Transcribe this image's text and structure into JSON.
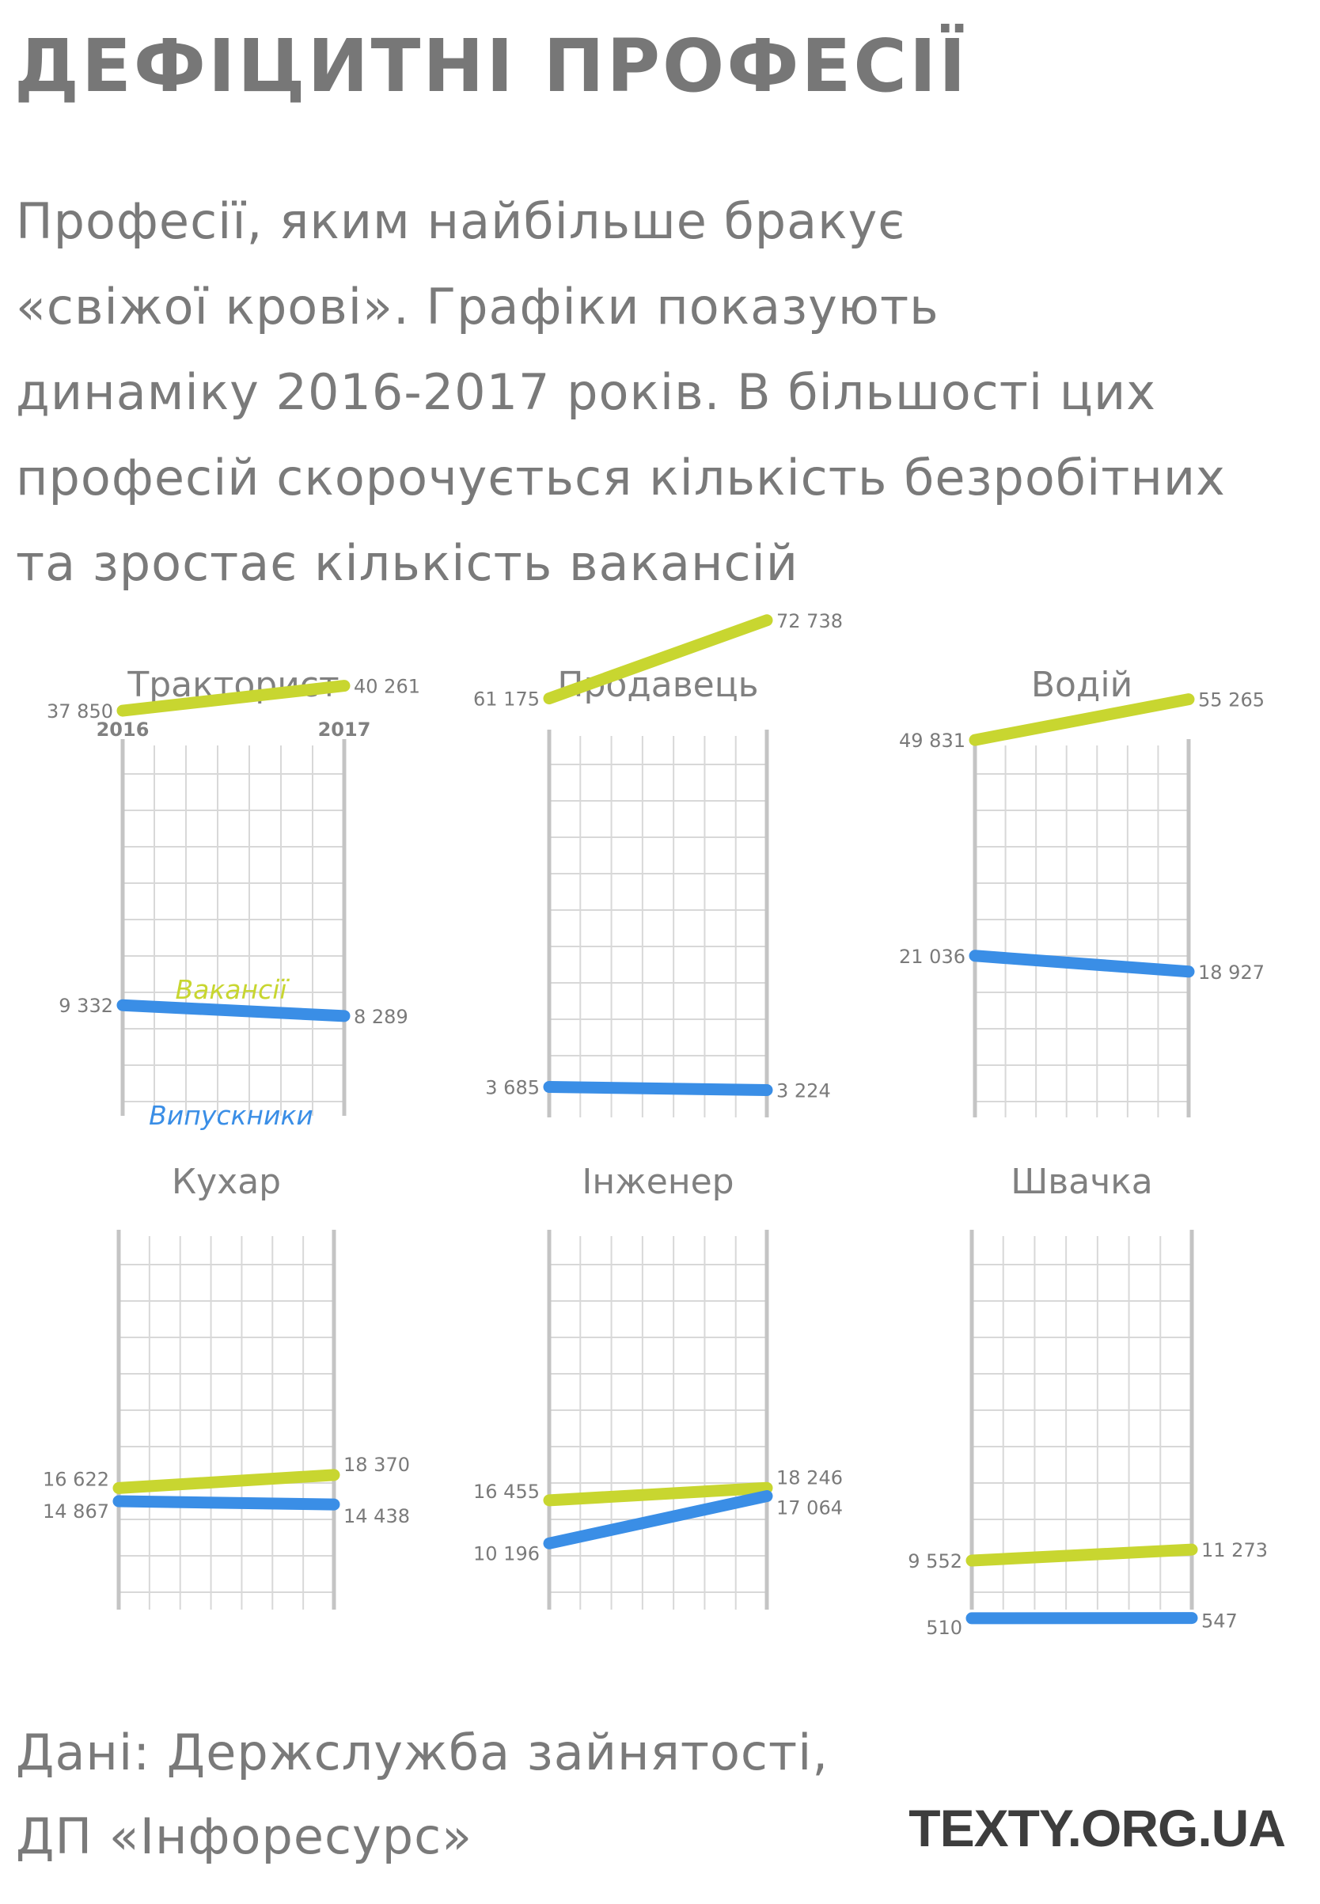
{
  "title": "ДЕФІЦИТНІ ПРОФЕСІЇ",
  "subtitle_lines": [
    "Професії, яким найбільше бракує",
    "«свіжої крові». Графіки показують",
    "динаміку 2016-2017 років. В більшості цих",
    "професій скорочується кількість безробітних",
    "та зростає кількість вакансій"
  ],
  "footer": {
    "source_lines": [
      "Дані: Держслужба зайнятості,",
      "ДП «Інфоресурс»"
    ],
    "logo": "TEXTY.ORG.UA"
  },
  "colors": {
    "vacancies": "#c8d630",
    "graduates": "#3a8ee6",
    "grid": "#d8d8d8",
    "axis": "#c4c4c4"
  },
  "legend": {
    "vacancies_label": "Вакансії",
    "graduates_label": "Випускники"
  },
  "chart_data": [
    {
      "type": "line",
      "title": "Тракторист",
      "x": [
        "2016",
        "2017"
      ],
      "show_x_labels": true,
      "series": [
        {
          "name": "Вакансії",
          "values": [
            37850,
            40261
          ],
          "labels": [
            "37 850",
            "40 261"
          ]
        },
        {
          "name": "Випускники",
          "values": [
            9332,
            8289
          ],
          "labels": [
            "9 332",
            "8 289"
          ]
        }
      ]
    },
    {
      "type": "line",
      "title": "Продавець",
      "x": [
        "2016",
        "2017"
      ],
      "series": [
        {
          "values": [
            61175,
            72738
          ],
          "labels": [
            "61 175",
            "72 738"
          ]
        },
        {
          "values": [
            3685,
            3224
          ],
          "labels": [
            "3 685",
            "3 224"
          ]
        }
      ]
    },
    {
      "type": "line",
      "title": "Водій",
      "x": [
        "2016",
        "2017"
      ],
      "series": [
        {
          "values": [
            49831,
            55265
          ],
          "labels": [
            "49 831",
            "55 265"
          ]
        },
        {
          "values": [
            21036,
            18927
          ],
          "labels": [
            "21 036",
            "18 927"
          ]
        }
      ]
    },
    {
      "type": "line",
      "title": "Кухар",
      "x": [
        "2016",
        "2017"
      ],
      "series": [
        {
          "values": [
            16622,
            18370
          ],
          "labels": [
            "16 622",
            "18 370"
          ]
        },
        {
          "values": [
            14867,
            14438
          ],
          "labels": [
            "14 867",
            "14 438"
          ]
        }
      ]
    },
    {
      "type": "line",
      "title": "Інженер",
      "x": [
        "2016",
        "2017"
      ],
      "series": [
        {
          "values": [
            16455,
            18246
          ],
          "labels": [
            "16 455",
            "18 246"
          ]
        },
        {
          "values": [
            10196,
            17064
          ],
          "labels": [
            "10 196",
            "17 064"
          ]
        }
      ]
    },
    {
      "type": "line",
      "title": "Швачка",
      "x": [
        "2016",
        "2017"
      ],
      "series": [
        {
          "values": [
            9552,
            11273
          ],
          "labels": [
            "9 552",
            "11 273"
          ]
        },
        {
          "values": [
            510,
            547
          ],
          "labels": [
            "510",
            "547"
          ]
        }
      ]
    }
  ]
}
